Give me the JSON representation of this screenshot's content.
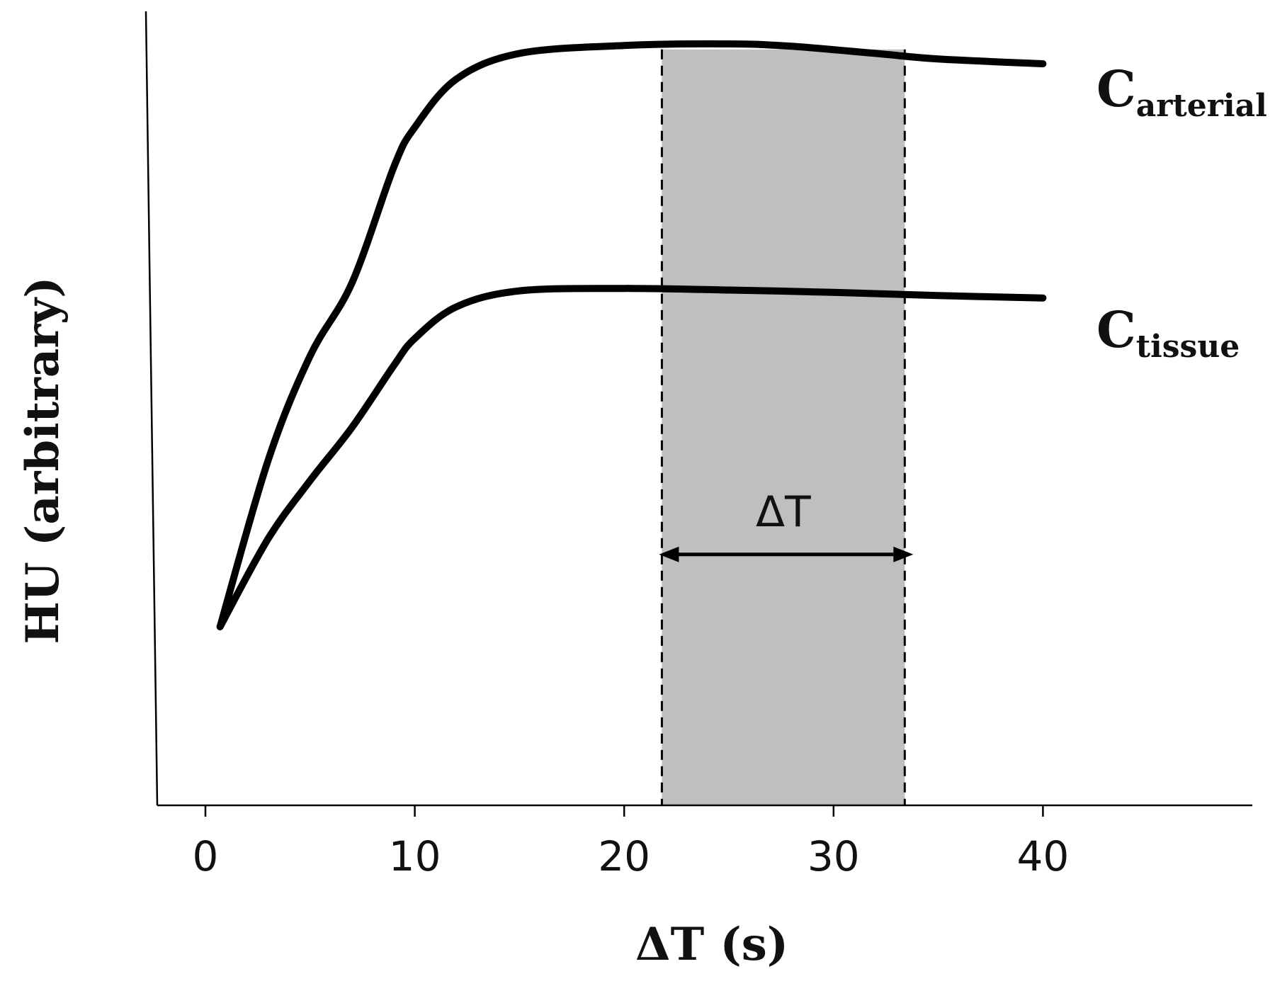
{
  "chart_data": {
    "type": "line",
    "xlabel": "ΔT (s)",
    "ylabel": "HU (arbitrary)",
    "xlim": [
      -2.3,
      50
    ],
    "ylim": [
      0,
      100
    ],
    "x_ticks": [
      0,
      10,
      20,
      30,
      40
    ],
    "grid": false,
    "legend": "none",
    "colors": {
      "line": "#000000",
      "band_fill": "#bfbfbf",
      "axis": "#000000"
    },
    "series": [
      {
        "name": "C",
        "subscript": "arterial",
        "points": [
          [
            0.7,
            22.5
          ],
          [
            3,
            43.5
          ],
          [
            5,
            56.6
          ],
          [
            7,
            65.8
          ],
          [
            9,
            80.4
          ],
          [
            10,
            85.4
          ],
          [
            12,
            91.5
          ],
          [
            15,
            94.7
          ],
          [
            20,
            95.7
          ],
          [
            25,
            95.9
          ],
          [
            28,
            95.6
          ],
          [
            32,
            94.7
          ],
          [
            35,
            94.0
          ],
          [
            40,
            93.4
          ]
        ]
      },
      {
        "name": "C",
        "subscript": "tissue",
        "points": [
          [
            0.7,
            22.5
          ],
          [
            3,
            33.6
          ],
          [
            5,
            40.9
          ],
          [
            7,
            47.6
          ],
          [
            9,
            55.4
          ],
          [
            10,
            58.8
          ],
          [
            12,
            62.8
          ],
          [
            15,
            64.8
          ],
          [
            20,
            65.1
          ],
          [
            25,
            64.9
          ],
          [
            30,
            64.6
          ],
          [
            35,
            64.2
          ],
          [
            40,
            63.9
          ]
        ]
      }
    ],
    "band": {
      "x_start": 21.8,
      "x_end": 33.4,
      "label": "ΔT"
    }
  }
}
